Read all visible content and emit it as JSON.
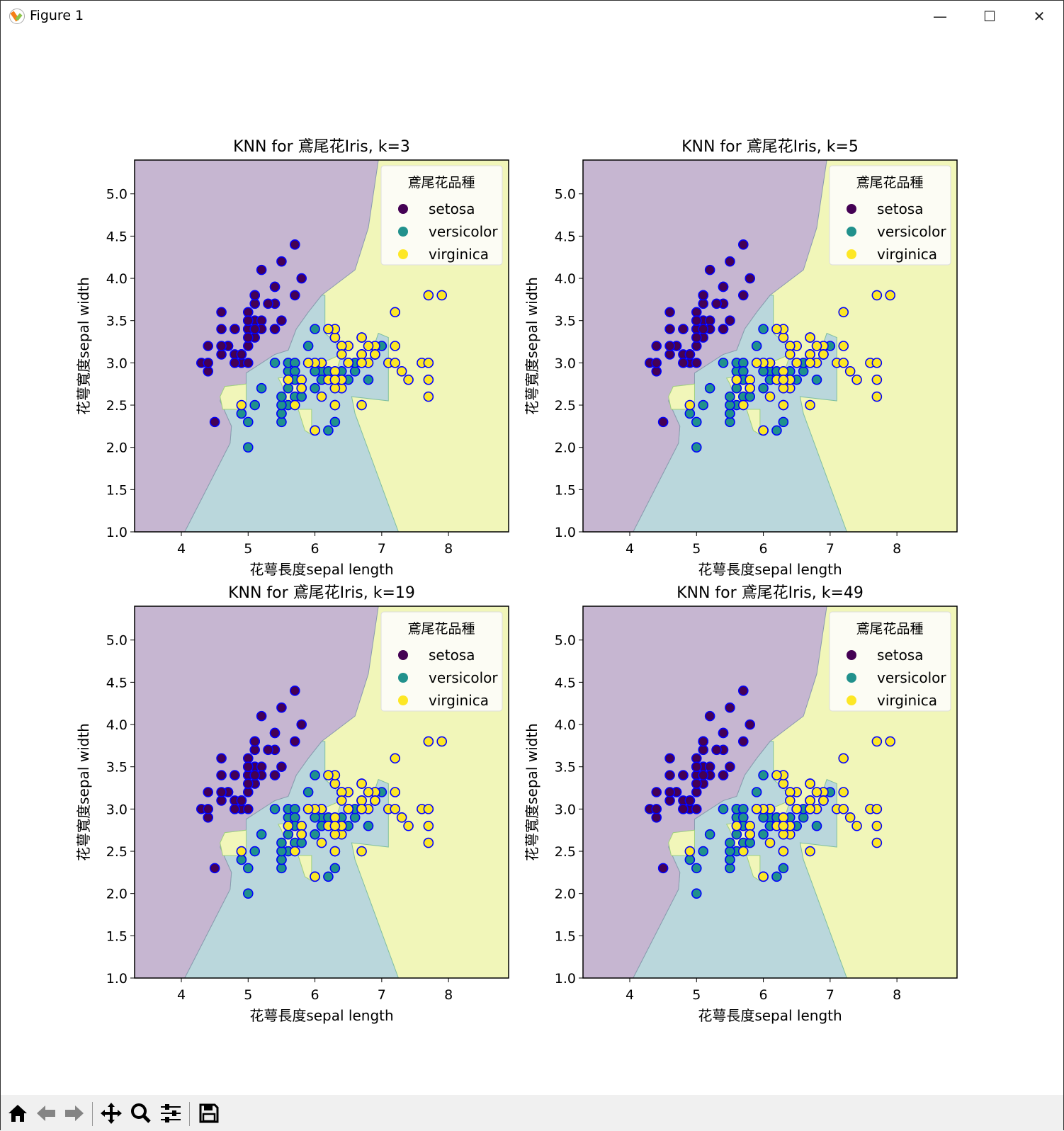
{
  "window": {
    "title": "Figure 1",
    "minimize": "—",
    "maximize": "☐",
    "close": "✕"
  },
  "toolbar": [
    "home",
    "back",
    "forward",
    "pan",
    "zoom",
    "configure-subplots",
    "save"
  ],
  "colors": {
    "setosa_region": "#c6b6d1",
    "versicolor_region": "#bad7dc",
    "virginica_region": "#f1f6b9",
    "setosa": "#440154",
    "versicolor": "#21918c",
    "virginica": "#fde725",
    "edge": "#0000ff"
  },
  "chart_data": [
    {
      "type": "scatter",
      "title": "KNN for 鳶尾花Iris, k=3",
      "xlabel": "花萼長度sepal length",
      "ylabel": "花萼寬度sepal width"
    },
    {
      "type": "scatter",
      "title": "KNN for 鳶尾花Iris, k=5",
      "xlabel": "花萼長度sepal length",
      "ylabel": "花萼寬度sepal width"
    },
    {
      "type": "scatter",
      "title": "KNN for 鳶尾花Iris, k=19",
      "xlabel": "花萼長度sepal length",
      "ylabel": "花萼寬度sepal width"
    },
    {
      "type": "scatter",
      "title": "KNN for 鳶尾花Iris, k=49",
      "xlabel": "花萼長度sepal length",
      "ylabel": "花萼寬度sepal width"
    }
  ],
  "shared": {
    "xlim": [
      3.3,
      8.9
    ],
    "ylim": [
      1.0,
      5.4
    ],
    "xticks": [
      "4",
      "5",
      "6",
      "7",
      "8"
    ],
    "yticks": [
      "1.0",
      "1.5",
      "2.0",
      "2.5",
      "3.0",
      "3.5",
      "4.0",
      "4.5",
      "5.0"
    ],
    "legend": {
      "title": "鳶尾花品種",
      "placement": "top-right",
      "entries": [
        "setosa",
        "versicolor",
        "virginica"
      ]
    },
    "regions": {
      "setosa": [
        [
          3.3,
          5.4
        ],
        [
          6.95,
          5.4
        ],
        [
          6.8,
          4.6
        ],
        [
          6.6,
          4.1
        ],
        [
          6.1,
          3.8
        ],
        [
          5.9,
          3.6
        ],
        [
          5.72,
          3.4
        ],
        [
          5.6,
          3.15
        ],
        [
          5.4,
          3.1
        ],
        [
          4.97,
          2.88
        ],
        [
          4.97,
          2.75
        ],
        [
          4.65,
          2.72
        ],
        [
          4.58,
          2.55
        ],
        [
          4.75,
          2.25
        ],
        [
          4.73,
          2.05
        ],
        [
          4.05,
          1.0
        ],
        [
          3.3,
          1.0
        ]
      ],
      "versicolor": [
        [
          6.1,
          3.8
        ],
        [
          5.9,
          3.6
        ],
        [
          5.72,
          3.4
        ],
        [
          5.6,
          3.15
        ],
        [
          5.4,
          3.1
        ],
        [
          4.97,
          2.88
        ],
        [
          4.97,
          2.75
        ],
        [
          4.65,
          2.72
        ],
        [
          4.58,
          2.55
        ],
        [
          4.75,
          2.25
        ],
        [
          4.73,
          2.05
        ],
        [
          4.05,
          1.0
        ],
        [
          7.25,
          1.0
        ],
        [
          6.6,
          2.4
        ],
        [
          6.55,
          2.6
        ],
        [
          7.1,
          2.55
        ],
        [
          7.1,
          3.3
        ],
        [
          6.95,
          3.35
        ],
        [
          6.8,
          3.0
        ],
        [
          6.5,
          2.95
        ],
        [
          6.3,
          3.25
        ],
        [
          6.15,
          3.35
        ],
        [
          6.15,
          3.8
        ]
      ],
      "virginica_islands": [
        [
          [
            4.65,
            2.72
          ],
          [
            4.97,
            2.75
          ],
          [
            4.97,
            2.45
          ],
          [
            4.62,
            2.45
          ],
          [
            4.58,
            2.6
          ]
        ],
        [
          [
            5.45,
            2.82
          ],
          [
            5.75,
            2.85
          ],
          [
            5.78,
            2.6
          ],
          [
            5.6,
            2.5
          ],
          [
            5.5,
            2.75
          ]
        ],
        [
          [
            5.75,
            2.45
          ],
          [
            5.95,
            2.45
          ],
          [
            5.95,
            2.15
          ],
          [
            5.85,
            2.2
          ]
        ],
        [
          [
            6.1,
            3.0
          ],
          [
            6.4,
            3.1
          ],
          [
            6.3,
            2.85
          ],
          [
            6.1,
            2.85
          ]
        ]
      ]
    },
    "points": {
      "setosa": [
        [
          5.1,
          3.5
        ],
        [
          4.9,
          3.0
        ],
        [
          4.7,
          3.2
        ],
        [
          4.6,
          3.1
        ],
        [
          5.0,
          3.6
        ],
        [
          5.4,
          3.9
        ],
        [
          4.6,
          3.4
        ],
        [
          5.0,
          3.4
        ],
        [
          4.4,
          2.9
        ],
        [
          4.9,
          3.1
        ],
        [
          5.4,
          3.7
        ],
        [
          4.8,
          3.4
        ],
        [
          4.8,
          3.0
        ],
        [
          4.3,
          3.0
        ],
        [
          5.8,
          4.0
        ],
        [
          5.7,
          4.4
        ],
        [
          5.4,
          3.9
        ],
        [
          5.1,
          3.5
        ],
        [
          5.7,
          3.8
        ],
        [
          5.1,
          3.8
        ],
        [
          5.4,
          3.4
        ],
        [
          5.1,
          3.7
        ],
        [
          4.6,
          3.6
        ],
        [
          5.1,
          3.3
        ],
        [
          4.8,
          3.4
        ],
        [
          5.0,
          3.0
        ],
        [
          5.0,
          3.4
        ],
        [
          5.2,
          3.5
        ],
        [
          5.2,
          3.4
        ],
        [
          4.7,
          3.2
        ],
        [
          4.8,
          3.1
        ],
        [
          5.4,
          3.4
        ],
        [
          5.2,
          4.1
        ],
        [
          5.5,
          4.2
        ],
        [
          4.9,
          3.1
        ],
        [
          5.0,
          3.2
        ],
        [
          5.5,
          3.5
        ],
        [
          4.9,
          3.1
        ],
        [
          4.4,
          3.0
        ],
        [
          5.1,
          3.4
        ],
        [
          5.0,
          3.5
        ],
        [
          4.5,
          2.3
        ],
        [
          4.4,
          3.2
        ],
        [
          5.0,
          3.5
        ],
        [
          5.1,
          3.8
        ],
        [
          4.8,
          3.0
        ],
        [
          5.1,
          3.8
        ],
        [
          4.6,
          3.2
        ],
        [
          5.3,
          3.7
        ],
        [
          5.0,
          3.3
        ]
      ],
      "versicolor": [
        [
          7.0,
          3.2
        ],
        [
          6.4,
          3.2
        ],
        [
          6.9,
          3.1
        ],
        [
          5.5,
          2.3
        ],
        [
          6.5,
          2.8
        ],
        [
          5.7,
          2.8
        ],
        [
          6.3,
          3.3
        ],
        [
          4.9,
          2.4
        ],
        [
          6.6,
          2.9
        ],
        [
          5.2,
          2.7
        ],
        [
          5.0,
          2.0
        ],
        [
          5.9,
          3.0
        ],
        [
          6.0,
          2.2
        ],
        [
          6.1,
          2.9
        ],
        [
          5.6,
          2.9
        ],
        [
          6.7,
          3.1
        ],
        [
          5.6,
          3.0
        ],
        [
          5.8,
          2.7
        ],
        [
          6.2,
          2.2
        ],
        [
          5.6,
          2.5
        ],
        [
          5.9,
          3.2
        ],
        [
          6.1,
          2.8
        ],
        [
          6.3,
          2.5
        ],
        [
          6.1,
          2.8
        ],
        [
          6.4,
          2.9
        ],
        [
          6.6,
          3.0
        ],
        [
          6.8,
          2.8
        ],
        [
          6.7,
          3.0
        ],
        [
          6.0,
          2.9
        ],
        [
          5.7,
          2.6
        ],
        [
          5.5,
          2.4
        ],
        [
          5.5,
          2.4
        ],
        [
          5.8,
          2.7
        ],
        [
          6.0,
          2.7
        ],
        [
          5.4,
          3.0
        ],
        [
          6.0,
          3.4
        ],
        [
          6.7,
          3.1
        ],
        [
          6.3,
          2.3
        ],
        [
          5.6,
          3.0
        ],
        [
          5.5,
          2.5
        ],
        [
          5.5,
          2.6
        ],
        [
          6.1,
          3.0
        ],
        [
          5.8,
          2.6
        ],
        [
          5.0,
          2.3
        ],
        [
          5.6,
          2.7
        ],
        [
          5.7,
          3.0
        ],
        [
          5.7,
          2.9
        ],
        [
          6.2,
          2.9
        ],
        [
          5.1,
          2.5
        ],
        [
          5.7,
          2.8
        ]
      ],
      "virginica": [
        [
          6.3,
          3.3
        ],
        [
          5.8,
          2.7
        ],
        [
          7.1,
          3.0
        ],
        [
          6.3,
          2.9
        ],
        [
          6.5,
          3.0
        ],
        [
          7.6,
          3.0
        ],
        [
          4.9,
          2.5
        ],
        [
          7.3,
          2.9
        ],
        [
          6.7,
          2.5
        ],
        [
          7.2,
          3.6
        ],
        [
          6.5,
          3.2
        ],
        [
          6.4,
          2.7
        ],
        [
          6.8,
          3.0
        ],
        [
          5.7,
          2.5
        ],
        [
          5.8,
          2.8
        ],
        [
          6.4,
          3.2
        ],
        [
          6.5,
          3.0
        ],
        [
          7.7,
          3.8
        ],
        [
          7.7,
          2.6
        ],
        [
          6.0,
          2.2
        ],
        [
          6.9,
          3.2
        ],
        [
          5.6,
          2.8
        ],
        [
          7.7,
          2.8
        ],
        [
          6.3,
          2.7
        ],
        [
          6.7,
          3.3
        ],
        [
          7.2,
          3.2
        ],
        [
          6.2,
          2.8
        ],
        [
          6.1,
          3.0
        ],
        [
          6.4,
          2.8
        ],
        [
          7.2,
          3.0
        ],
        [
          7.4,
          2.8
        ],
        [
          7.9,
          3.8
        ],
        [
          6.4,
          2.8
        ],
        [
          6.3,
          2.8
        ],
        [
          6.1,
          2.6
        ],
        [
          7.7,
          3.0
        ],
        [
          6.3,
          3.4
        ],
        [
          6.4,
          3.1
        ],
        [
          6.0,
          3.0
        ],
        [
          6.9,
          3.1
        ],
        [
          6.7,
          3.1
        ],
        [
          6.9,
          3.1
        ],
        [
          5.8,
          2.7
        ],
        [
          6.8,
          3.2
        ],
        [
          6.7,
          3.3
        ],
        [
          6.7,
          3.0
        ],
        [
          6.3,
          2.5
        ],
        [
          6.5,
          3.0
        ],
        [
          6.2,
          3.4
        ],
        [
          5.9,
          3.0
        ]
      ]
    }
  }
}
